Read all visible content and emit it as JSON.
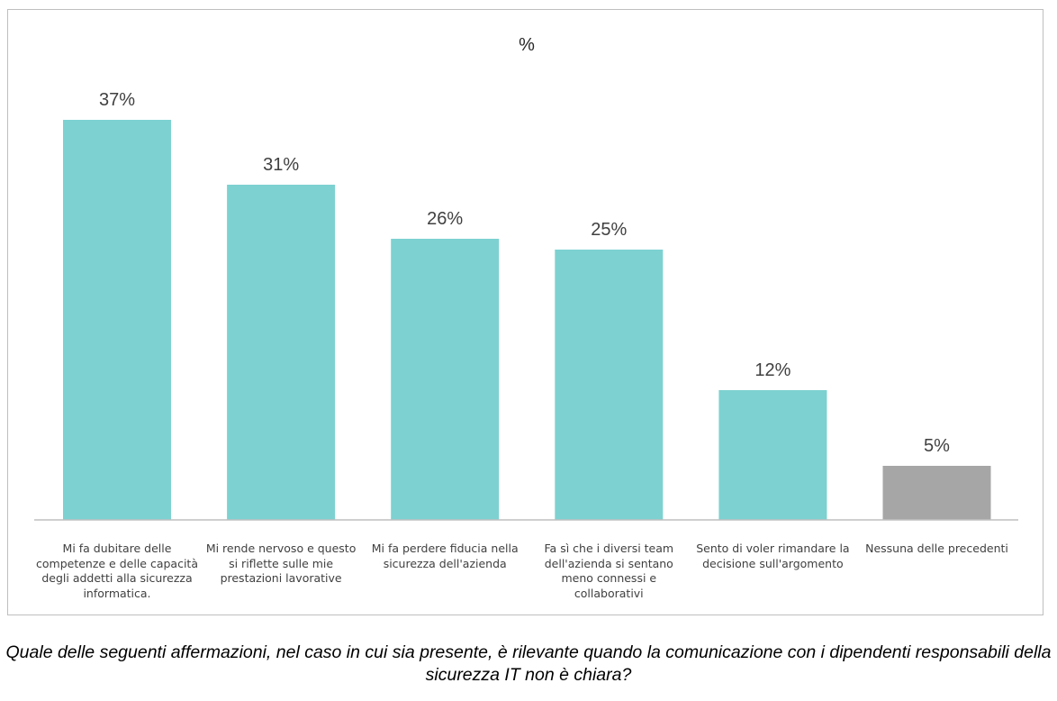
{
  "chart_data": {
    "type": "bar",
    "title": "%",
    "categories": [
      "Mi fa dubitare delle competenze e delle capacità degli addetti alla sicurezza informatica.",
      "Mi rende nervoso e questo si riflette sulle mie prestazioni lavorative",
      "Mi fa perdere fiducia nella sicurezza dell'azienda",
      "Fa sì che i diversi team dell'azienda si sentano meno connessi e collaborativi",
      "Sento di voler rimandare la decisione sull'argomento",
      "Nessuna delle precedenti"
    ],
    "values": [
      37,
      31,
      26,
      25,
      12,
      5
    ],
    "value_labels": [
      "37%",
      "31%",
      "26%",
      "25%",
      "12%",
      "5%"
    ],
    "bar_colors": [
      "#7dd1d1",
      "#7dd1d1",
      "#7dd1d1",
      "#7dd1d1",
      "#7dd1d1",
      "#a6a6a6"
    ],
    "xlabel": "",
    "ylabel": "",
    "ylim": [
      0,
      37
    ],
    "grid": false,
    "legend": "none"
  },
  "caption": "Quale delle seguenti affermazioni, nel caso in cui sia presente, è rilevante quando la comunicazione con i dipendenti responsabili della sicurezza IT non è chiara?"
}
